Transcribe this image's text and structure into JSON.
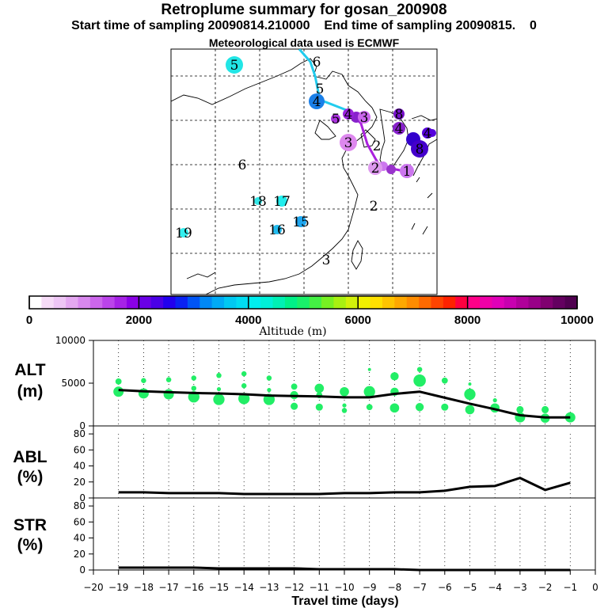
{
  "header": {
    "title": "Retroplume summary for gosan_200908",
    "start": "Start time of sampling 20090814.210000",
    "end": "End time of sampling 20090815.",
    "end_suffix": "0",
    "met": "Meteorological data used is ECMWF"
  },
  "map": {
    "markers": [
      {
        "label": "5",
        "color": "#22e6e6"
      },
      {
        "label": "6",
        "color": "none"
      },
      {
        "label": "5",
        "color": "none"
      },
      {
        "label": "4",
        "color": "#1a7fe8"
      },
      {
        "label": "4",
        "color": "#9922dd"
      },
      {
        "label": "5",
        "color": "#aa33dd"
      },
      {
        "label": "3",
        "color": "#cc66ee"
      },
      {
        "label": "2",
        "color": "none"
      },
      {
        "label": "3",
        "color": "#dd88ee"
      },
      {
        "label": "2",
        "color": "#dd99ee"
      },
      {
        "label": "1",
        "color": "#cc77ee"
      },
      {
        "label": "8",
        "color": "#7711cc"
      },
      {
        "label": "4",
        "color": "#8822cc"
      },
      {
        "label": "4",
        "color": "#5500dd"
      },
      {
        "label": "8",
        "color": "#4400cc"
      },
      {
        "label": "6",
        "color": "none"
      },
      {
        "label": "18",
        "color": "#33e6e6"
      },
      {
        "label": "17",
        "color": "#22eeee"
      },
      {
        "label": "15",
        "color": "#1fa7f0"
      },
      {
        "label": "16",
        "color": "#22bbee"
      },
      {
        "label": "19",
        "color": "#33eeee"
      },
      {
        "label": "2",
        "color": "none"
      },
      {
        "label": "3",
        "color": "none"
      }
    ]
  },
  "colorbar": {
    "tick_labels": [
      "0",
      "2000",
      "4000",
      "6000",
      "8000",
      "10000"
    ],
    "label": "Altitude (m)"
  },
  "panels": {
    "alt": {
      "label1": "ALT",
      "label2": "(m)",
      "ticks": [
        "10000",
        "5000",
        "0"
      ]
    },
    "abl": {
      "label1": "ABL",
      "label2": "(%)",
      "ticks": [
        "80",
        "60",
        "40",
        "20",
        "0"
      ]
    },
    "str": {
      "label1": "STR",
      "label2": "(%)",
      "ticks": [
        "80",
        "60",
        "40",
        "20",
        "0"
      ]
    }
  },
  "xaxis": {
    "label": "Travel time (days)",
    "ticks": [
      "−20",
      "−19",
      "−18",
      "−17",
      "−16",
      "−15",
      "−14",
      "−13",
      "−12",
      "−11",
      "−10",
      "−9",
      "−8",
      "−7",
      "−6",
      "−5",
      "−4",
      "−3",
      "−2",
      "−1",
      "0"
    ]
  },
  "chart_data": {
    "type": "line",
    "title": "Retroplume summary for gosan_200908",
    "xlabel": "Travel time (days)",
    "xlim": [
      -20,
      0
    ],
    "series": [
      {
        "name": "ALT mean (m)",
        "ylim": [
          0,
          10000
        ],
        "x": [
          -19,
          -18,
          -17,
          -16,
          -15,
          -14,
          -13,
          -12,
          -11,
          -10,
          -9,
          -8,
          -7,
          -6,
          -5,
          -4,
          -3,
          -2,
          -1
        ],
        "values": [
          4200,
          4050,
          3950,
          3850,
          3800,
          3700,
          3550,
          3500,
          3450,
          3350,
          3350,
          3750,
          4000,
          3300,
          2600,
          1950,
          1250,
          1000,
          1000
        ]
      },
      {
        "name": "ABL (%)",
        "ylim": [
          0,
          90
        ],
        "x": [
          -19,
          -18,
          -17,
          -16,
          -15,
          -14,
          -13,
          -12,
          -11,
          -10,
          -9,
          -8,
          -7,
          -6,
          -5,
          -4,
          -3,
          -2,
          -1
        ],
        "values": [
          7,
          7,
          6,
          6,
          6,
          5,
          5,
          5,
          5,
          6,
          6,
          7,
          7,
          9,
          14,
          15,
          25,
          10,
          19
        ]
      },
      {
        "name": "STR (%)",
        "ylim": [
          0,
          90
        ],
        "x": [
          -19,
          -18,
          -17,
          -16,
          -15,
          -14,
          -13,
          -12,
          -11,
          -10,
          -9,
          -8,
          -7,
          -6,
          -5,
          -4,
          -3,
          -2,
          -1
        ],
        "values": [
          3,
          3,
          3,
          3,
          2,
          2,
          2,
          2,
          1,
          1,
          1,
          1,
          0,
          0,
          0,
          0,
          0,
          0,
          0
        ]
      }
    ],
    "clusters": [
      {
        "x": -19,
        "points": [
          [
            5200,
            6
          ],
          [
            4000,
            10
          ]
        ]
      },
      {
        "x": -18,
        "points": [
          [
            5300,
            5
          ],
          [
            3800,
            10
          ]
        ]
      },
      {
        "x": -17,
        "points": [
          [
            5400,
            5
          ],
          [
            3700,
            10
          ]
        ]
      },
      {
        "x": -16,
        "points": [
          [
            5600,
            5
          ],
          [
            4400,
            5
          ],
          [
            3400,
            11
          ]
        ]
      },
      {
        "x": -15,
        "points": [
          [
            5900,
            5
          ],
          [
            4300,
            4
          ],
          [
            3100,
            11
          ]
        ]
      },
      {
        "x": -14,
        "points": [
          [
            6100,
            5
          ],
          [
            4700,
            5
          ],
          [
            3200,
            11
          ]
        ]
      },
      {
        "x": -13,
        "points": [
          [
            5600,
            5
          ],
          [
            4200,
            4
          ],
          [
            3100,
            11
          ]
        ]
      },
      {
        "x": -12,
        "points": [
          [
            4600,
            6
          ],
          [
            3600,
            8
          ],
          [
            2300,
            7
          ]
        ]
      },
      {
        "x": -11,
        "points": [
          [
            4400,
            9
          ],
          [
            3600,
            6
          ],
          [
            2200,
            7
          ]
        ]
      },
      {
        "x": -10,
        "points": [
          [
            4000,
            9
          ],
          [
            2400,
            4
          ],
          [
            1800,
            5
          ]
        ]
      },
      {
        "x": -9,
        "points": [
          [
            6600,
            3
          ],
          [
            4000,
            11
          ],
          [
            2200,
            6
          ]
        ]
      },
      {
        "x": -8,
        "points": [
          [
            5800,
            8
          ],
          [
            4000,
            8
          ],
          [
            2100,
            9
          ]
        ]
      },
      {
        "x": -7,
        "points": [
          [
            6600,
            5
          ],
          [
            5300,
            12
          ],
          [
            2200,
            8
          ]
        ]
      },
      {
        "x": -6,
        "points": [
          [
            5300,
            6
          ],
          [
            2200,
            7
          ]
        ]
      },
      {
        "x": -5,
        "points": [
          [
            4900,
            3
          ],
          [
            3700,
            11
          ],
          [
            1900,
            9
          ]
        ]
      },
      {
        "x": -4,
        "points": [
          [
            3000,
            4
          ],
          [
            2100,
            9
          ]
        ]
      },
      {
        "x": -3,
        "points": [
          [
            1900,
            7
          ],
          [
            1000,
            10
          ]
        ]
      },
      {
        "x": -2,
        "points": [
          [
            1900,
            7
          ],
          [
            900,
            9
          ]
        ]
      },
      {
        "x": -1,
        "points": [
          [
            1000,
            10
          ]
        ]
      }
    ]
  }
}
